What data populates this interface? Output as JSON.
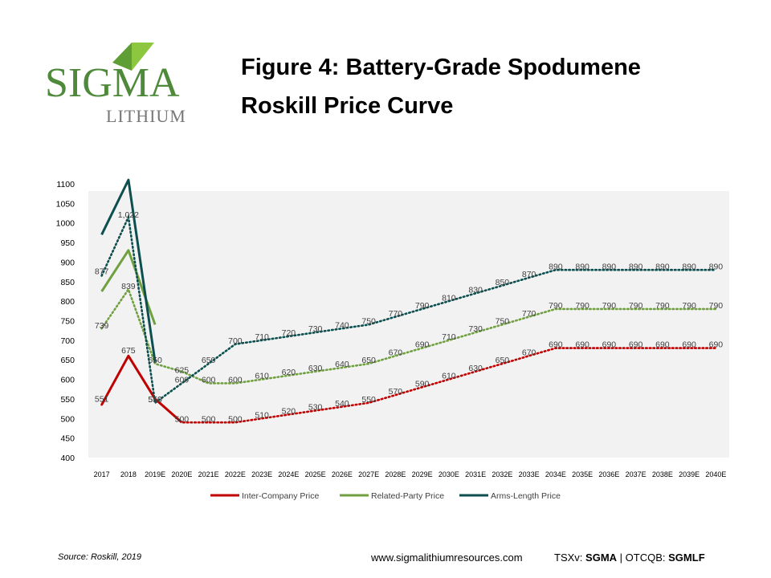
{
  "logo": {
    "word": "SIGMA",
    "sub": "LITHIUM",
    "color": "#4e8a3a",
    "accent": "#8dc63f"
  },
  "title": {
    "line1": "Figure 4:  Battery-Grade Spodumene",
    "line2": "Roskill Price Curve"
  },
  "footer": {
    "source": "Source:  Roskill, 2019",
    "url": "www.sigmalithiumresources.com",
    "tsx_label": "TSXv:",
    "tsx_value": "SGMA",
    "separator": "|",
    "otc_label": "OTCQB:",
    "otc_value": "SGMLF"
  },
  "chart_data": {
    "type": "line",
    "title": "",
    "xlabel": "",
    "ylabel": "",
    "ylim": [
      400,
      1100
    ],
    "yticks": [
      400,
      450,
      500,
      550,
      600,
      650,
      700,
      750,
      800,
      850,
      900,
      950,
      1000,
      1050,
      1100
    ],
    "grid": false,
    "plot_background": "#f2f2f2",
    "legend_position": "bottom",
    "categories": [
      "2017",
      "2018",
      "2019E",
      "2020E",
      "2021E",
      "2022E",
      "2023E",
      "2024E",
      "2025E",
      "2026E",
      "2027E",
      "2028E",
      "2029E",
      "2030E",
      "2031E",
      "2032E",
      "2033E",
      "2034E",
      "2035E",
      "2036E",
      "2037E",
      "2038E",
      "2039E",
      "2040E"
    ],
    "series": [
      {
        "name": "Inter-Company Price",
        "color": "#c00000",
        "solid": [
          535,
          660,
          550,
          490
        ],
        "dotted": [
          535,
          660,
          550,
          490,
          490,
          490,
          500,
          510,
          520,
          530,
          540,
          560,
          580,
          600,
          620,
          640,
          660,
          680,
          680,
          680,
          680,
          680,
          680,
          680
        ],
        "labels": [
          "551",
          "675",
          "550",
          "500",
          "500",
          "500",
          "510",
          "520",
          "530",
          "540",
          "550",
          "570",
          "590",
          "610",
          "630",
          "650",
          "670",
          "690",
          "690",
          "690",
          "690",
          "690",
          "690",
          "690"
        ]
      },
      {
        "name": "Related-Party Price",
        "color": "#70a040",
        "solid": [
          825,
          930,
          740
        ],
        "dotted": [
          730,
          830,
          640,
          620,
          590,
          590,
          600,
          610,
          620,
          630,
          640,
          660,
          680,
          700,
          720,
          740,
          760,
          780,
          780,
          780,
          780,
          780,
          780,
          780
        ],
        "labels": [
          "739",
          "839",
          "650",
          "600",
          "600",
          "600",
          "610",
          "620",
          "630",
          "640",
          "650",
          "670",
          "690",
          "710",
          "730",
          "750",
          "770",
          "790",
          "790",
          "790",
          "790",
          "790",
          "790",
          "790"
        ]
      },
      {
        "name": "Arms-Length Price",
        "color": "#0d4f4f",
        "solid": [
          970,
          1110,
          645
        ],
        "dotted": [
          865,
          1015,
          540,
          590,
          640,
          690,
          700,
          710,
          720,
          730,
          740,
          760,
          780,
          800,
          820,
          840,
          860,
          880,
          880,
          880,
          880,
          880,
          880,
          880
        ],
        "labels": [
          "877",
          "1,022",
          "550",
          "625",
          "650",
          "700",
          "710",
          "720",
          "730",
          "740",
          "750",
          "770",
          "790",
          "810",
          "830",
          "850",
          "870",
          "890",
          "890",
          "890",
          "890",
          "890",
          "890",
          "890"
        ]
      }
    ]
  }
}
